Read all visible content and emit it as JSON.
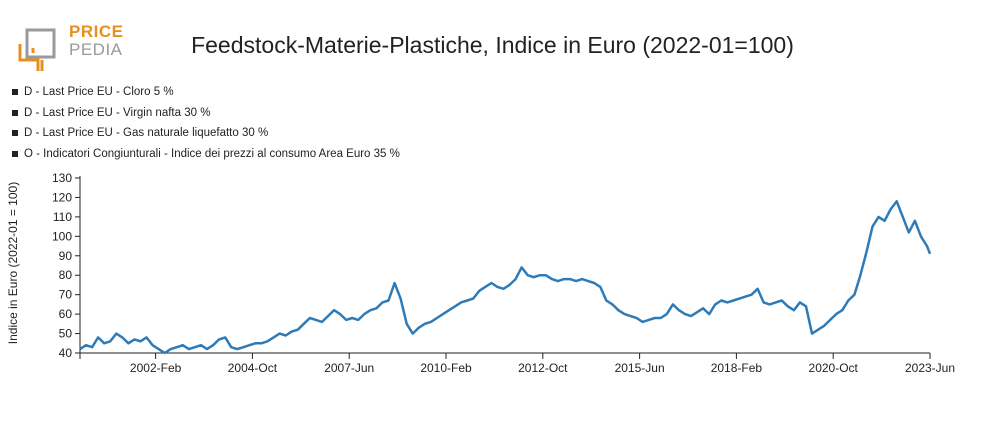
{
  "logo": {
    "line1": "PRICE",
    "line2": "PEDIA",
    "colors": {
      "orange": "#e8901f",
      "grey": "#9a9a9a"
    }
  },
  "chart_data": {
    "type": "line",
    "title": "Feedstock-Materie-Plastiche, Indice in Euro (2022-01=100)",
    "ylabel": "Indice in Euro (2022-01 = 100)",
    "xlabel": "",
    "legend": [
      "D - Last Price EU - Cloro 5 %",
      "D - Last Price EU - Virgin nafta 30 %",
      "D - Last Price EU - Gas naturale liquefatto 30 %",
      "O - Indicatori Congiunturali - Indice dei prezzi al consumo Area Euro 35 %"
    ],
    "legend_position": "top-left",
    "grid": false,
    "ylim": [
      40,
      130
    ],
    "yticks": [
      40,
      50,
      60,
      70,
      80,
      90,
      100,
      110,
      120,
      130
    ],
    "xlim": [
      "2000-01",
      "2023-06"
    ],
    "xticks": [
      "2002-Feb",
      "2004-Oct",
      "2007-Jun",
      "2010-Feb",
      "2012-Oct",
      "2015-Jun",
      "2018-Feb",
      "2020-Oct",
      "2023-Jun"
    ],
    "series_color": "#2e7bb8",
    "series": [
      {
        "x": [
          "2000-01",
          "2000-03",
          "2000-05",
          "2000-07",
          "2000-09",
          "2000-11",
          "2001-01",
          "2001-03",
          "2001-05",
          "2001-07",
          "2001-09",
          "2001-11",
          "2002-01",
          "2002-03",
          "2002-05",
          "2002-07",
          "2002-09",
          "2002-11",
          "2003-01",
          "2003-03",
          "2003-05",
          "2003-07",
          "2003-09",
          "2003-11",
          "2004-01",
          "2004-03",
          "2004-05",
          "2004-07",
          "2004-09",
          "2004-11",
          "2005-01",
          "2005-03",
          "2005-05",
          "2005-07",
          "2005-09",
          "2005-11",
          "2006-01",
          "2006-03",
          "2006-05",
          "2006-07",
          "2006-09",
          "2006-11",
          "2007-01",
          "2007-03",
          "2007-05",
          "2007-07",
          "2007-09",
          "2007-11",
          "2008-01",
          "2008-03",
          "2008-05",
          "2008-07",
          "2008-09",
          "2008-11",
          "2009-01",
          "2009-03",
          "2009-05",
          "2009-07",
          "2009-09",
          "2009-11",
          "2010-01",
          "2010-03",
          "2010-05",
          "2010-07",
          "2010-09",
          "2010-11",
          "2011-01",
          "2011-03",
          "2011-05",
          "2011-07",
          "2011-09",
          "2011-11",
          "2012-01",
          "2012-03",
          "2012-05",
          "2012-07",
          "2012-09",
          "2012-11",
          "2013-01",
          "2013-03",
          "2013-05",
          "2013-07",
          "2013-09",
          "2013-11",
          "2014-01",
          "2014-03",
          "2014-05",
          "2014-07",
          "2014-09",
          "2014-11",
          "2015-01",
          "2015-03",
          "2015-05",
          "2015-07",
          "2015-09",
          "2015-11",
          "2016-01",
          "2016-03",
          "2016-05",
          "2016-07",
          "2016-09",
          "2016-11",
          "2017-01",
          "2017-03",
          "2017-05",
          "2017-07",
          "2017-09",
          "2017-11",
          "2018-01",
          "2018-03",
          "2018-05",
          "2018-07",
          "2018-09",
          "2018-11",
          "2019-01",
          "2019-03",
          "2019-05",
          "2019-07",
          "2019-09",
          "2019-11",
          "2020-01",
          "2020-03",
          "2020-05",
          "2020-07",
          "2020-09",
          "2020-11",
          "2021-01",
          "2021-03",
          "2021-05",
          "2021-07",
          "2021-09",
          "2021-11",
          "2022-01",
          "2022-03",
          "2022-05",
          "2022-07",
          "2022-09",
          "2022-11",
          "2023-01",
          "2023-03",
          "2023-05",
          "2023-06"
        ],
        "values": [
          42,
          44,
          43,
          48,
          45,
          46,
          50,
          48,
          45,
          47,
          46,
          48,
          44,
          42,
          40,
          42,
          43,
          44,
          42,
          43,
          44,
          42,
          44,
          47,
          48,
          43,
          42,
          43,
          44,
          45,
          45,
          46,
          48,
          50,
          49,
          51,
          52,
          55,
          58,
          57,
          56,
          59,
          62,
          60,
          57,
          58,
          57,
          60,
          62,
          63,
          66,
          67,
          76,
          68,
          55,
          50,
          53,
          55,
          56,
          58,
          60,
          62,
          64,
          66,
          67,
          68,
          72,
          74,
          76,
          74,
          73,
          75,
          78,
          84,
          80,
          79,
          80,
          80,
          78,
          77,
          78,
          78,
          77,
          78,
          77,
          76,
          74,
          67,
          65,
          62,
          60,
          59,
          58,
          56,
          57,
          58,
          58,
          60,
          65,
          62,
          60,
          59,
          61,
          63,
          60,
          65,
          67,
          66,
          67,
          68,
          69,
          70,
          73,
          66,
          65,
          66,
          67,
          64,
          62,
          66,
          64,
          50,
          52,
          54,
          57,
          60,
          62,
          67,
          70,
          80,
          92,
          105,
          110,
          108,
          114,
          118,
          110,
          102,
          108,
          100,
          95,
          91
        ]
      }
    ]
  }
}
